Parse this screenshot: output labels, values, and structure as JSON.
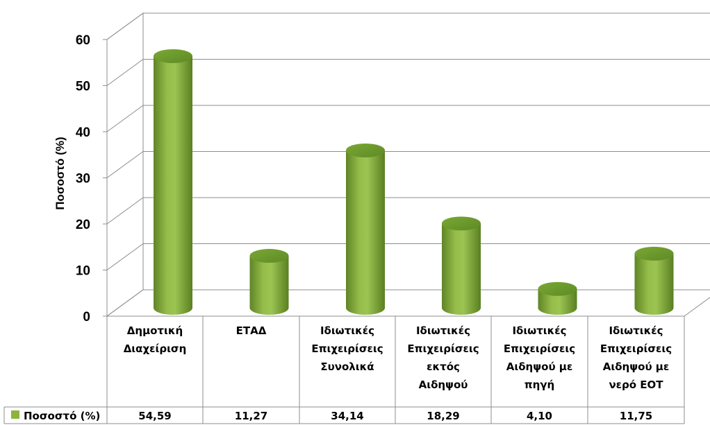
{
  "chart_data": {
    "type": "bar",
    "style": "3d-cylinder",
    "categories": [
      [
        "Δημοτική",
        "Διαχείριση"
      ],
      [
        "ΕΤΑΔ"
      ],
      [
        "Ιδιωτικές",
        "Επιχειρίσεις",
        "Συνολικά"
      ],
      [
        "Ιδιωτικές",
        "Επιχειρίσεις",
        "εκτός",
        "Αιδηψού"
      ],
      [
        "Ιδιωτικές",
        "Επιχειρίσεις",
        "Αιδηψού με",
        "πηγή"
      ],
      [
        "Ιδιωτικές",
        "Επιχειρίσεις",
        "Αιδηψού με",
        "νερό ΕΟΤ"
      ]
    ],
    "series": [
      {
        "name": "Ποσοστό (%)",
        "values": [
          54.59,
          11.27,
          34.14,
          18.29,
          4.1,
          11.75
        ],
        "value_labels": [
          "54,59",
          "11,27",
          "34,14",
          "18,29",
          "4,10",
          "11,75"
        ],
        "color": "#8DB43E"
      }
    ],
    "ylabel": "Ποσοστό (%)",
    "xlabel": "",
    "ylim": [
      0,
      60
    ],
    "yticks": [
      0,
      10,
      20,
      30,
      40,
      50,
      60
    ],
    "grid": true,
    "legend": "data-table-left",
    "data_table": true
  }
}
